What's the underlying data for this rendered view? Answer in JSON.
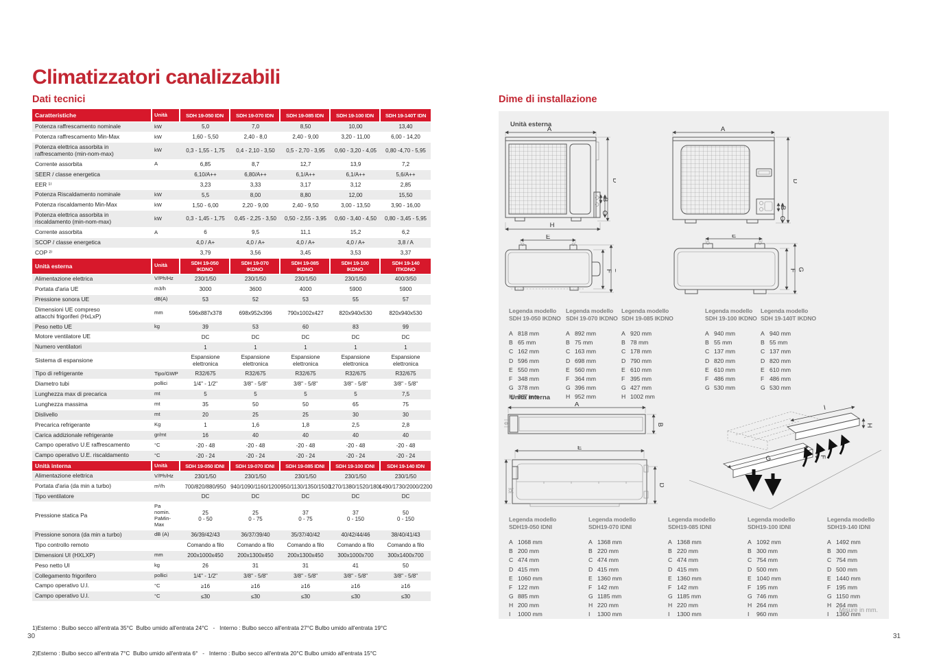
{
  "colors": {
    "accent": "#d7182b",
    "title": "#c22632",
    "panel": "#efefef",
    "row_alt": "#ebebeb"
  },
  "page": {
    "title": "Climatizzatori canalizzabili",
    "left_number": "30",
    "right_number": "31"
  },
  "left": {
    "section_title": "Dati tecnici",
    "table": {
      "header": {
        "label": "Caratteristiche",
        "unit": "Unità",
        "models": [
          "SDH 19-050 IDN",
          "SDH 19-070 IDN",
          "SDH 19-085 IDN",
          "SDH 19-100 IDN",
          "SDH 19-140T IDN"
        ]
      },
      "rows": [
        {
          "label": "Potenza raffrescamento nominale",
          "unit": "kW",
          "values": [
            "5,0",
            "7,0",
            "8,50",
            "10,00",
            "13,40"
          ]
        },
        {
          "label": "Potenza raffrescamento Min-Max",
          "unit": "kW",
          "values": [
            "1,60 - 5,50",
            "2,40 - 8,0",
            "2,40 - 9,00",
            "3,20 - 11,00",
            "6,00 - 14,20"
          ]
        },
        {
          "label": "Potenza elettrica assorbita in\nraffrescamento (min-nom-max)",
          "unit": "kW",
          "values": [
            "0,3 - 1,55 - 1,75",
            "0,4 - 2,10 - 3,50",
            "0,5 - 2,70 - 3,95",
            "0,60 - 3,20 - 4,05",
            "0,80 -4,70 - 5,95"
          ]
        },
        {
          "label": "Corrente assorbita",
          "unit": "A",
          "values": [
            "6,85",
            "8,7",
            "12,7",
            "13,9",
            "7,2"
          ]
        },
        {
          "label": "SEER / classe energetica",
          "unit": "",
          "values": [
            "6,10/A++",
            "6,80/A++",
            "6,1/A++",
            "6,1/A++",
            "5,6/A++"
          ]
        },
        {
          "label": "EER ¹⁾",
          "unit": "",
          "values": [
            "3,23",
            "3,33",
            "3,17",
            "3,12",
            "2,85"
          ]
        },
        {
          "label": "Potenza Riscaldamento nominale",
          "unit": "kW",
          "values": [
            "5,5",
            "8,00",
            "8,80",
            "12,00",
            "15,50"
          ]
        },
        {
          "label": "Potenza riscaldamento Min-Max",
          "unit": "kW",
          "values": [
            "1,50 - 6,00",
            "2,20 - 9,00",
            "2,40 - 9,50",
            "3,00 - 13,50",
            "3,90 - 16,00"
          ]
        },
        {
          "label": "Potenza elettrica assorbita in\nriscaldamento (min-nom-max)",
          "unit": "kW",
          "values": [
            "0,3 - 1,45 - 1,75",
            "0,45 - 2,25 - 3,50",
            "0,50 - 2,55 - 3,95",
            "0,60 - 3,40 - 4,50",
            "0,80 - 3,45 - 5,95"
          ]
        },
        {
          "label": "Corrente assorbita",
          "unit": "A",
          "values": [
            "6",
            "9,5",
            "11,1",
            "15,2",
            "6,2"
          ]
        },
        {
          "label": "SCOP / classe energetica",
          "unit": "",
          "values": [
            "4,0 / A+",
            "4,0 / A+",
            "4,0 / A+",
            "4,0 / A+",
            "3,8 / A"
          ]
        },
        {
          "label": "COP ²⁾",
          "unit": "",
          "values": [
            "3,79",
            "3,56",
            "3,45",
            "3,53",
            "3,37"
          ]
        },
        {
          "type": "section",
          "label": "Unità esterna",
          "unit": "Unità",
          "values": [
            "SDH 19-050 IKDNO",
            "SDH 19-070 IKDNO",
            "SDH 19-085 IKDNO",
            "SDH 19-100 IKDNO",
            "SDH 19-140 ITKDNO"
          ]
        },
        {
          "label": "Alimentazione elettrica",
          "unit": "V/Ph/Hz",
          "values": [
            "230/1/50",
            "230/1/50",
            "230/1/50",
            "230/1/50",
            "400/3/50"
          ]
        },
        {
          "label": "Portata d'aria UE",
          "unit": "m3/h",
          "values": [
            "3000",
            "3600",
            "4000",
            "5900",
            "5900"
          ]
        },
        {
          "label": "Pressione sonora UE",
          "unit": "dB(A)",
          "values": [
            "53",
            "52",
            "53",
            "55",
            "57"
          ]
        },
        {
          "label": "Dimensioni UE compreso\nattacchi frigoriferi (HxLxP)",
          "unit": "mm",
          "values": [
            "596x887x378",
            "698x952x396",
            "790x1002x427",
            "820x940x530",
            "820x940x530"
          ]
        },
        {
          "label": "Peso netto UE",
          "unit": "kg",
          "values": [
            "39",
            "53",
            "60",
            "83",
            "99"
          ]
        },
        {
          "label": "Motore ventilatore UE",
          "unit": "",
          "values": [
            "DC",
            "DC",
            "DC",
            "DC",
            "DC"
          ]
        },
        {
          "label": "Numero ventilatori",
          "unit": "",
          "values": [
            "1",
            "1",
            "1",
            "1",
            "1"
          ]
        },
        {
          "label": "Sistema di espansione",
          "unit": "",
          "values": [
            "Espansione\nelettronica",
            "Espansione\nelettronica",
            "Espansione\nelettronica",
            "Espansione\nelettronica",
            "Espansione\nelettronica"
          ]
        },
        {
          "label": "Tipo di refrigerante",
          "unit": "Tipo/GWP",
          "values": [
            "R32/675",
            "R32/675",
            "R32/675",
            "R32/675",
            "R32/675"
          ]
        },
        {
          "label": "Diametro tubi",
          "unit": "pollici",
          "values": [
            "1/4\" - 1/2\"",
            "3/8\" - 5/8\"",
            "3/8\" - 5/8\"",
            "3/8\" - 5/8\"",
            "3/8\" - 5/8\""
          ]
        },
        {
          "label": "Lunghezza max di precarica",
          "unit": "mt",
          "values": [
            "5",
            "5",
            "5",
            "5",
            "7,5"
          ]
        },
        {
          "label": "Lunghezza massima",
          "unit": "mt",
          "values": [
            "35",
            "50",
            "50",
            "65",
            "75"
          ]
        },
        {
          "label": "Dislivello",
          "unit": "mt",
          "values": [
            "20",
            "25",
            "25",
            "30",
            "30"
          ]
        },
        {
          "label": "Precarica refrigerante",
          "unit": "Kg",
          "values": [
            "1",
            "1,6",
            "1,8",
            "2,5",
            "2,8"
          ]
        },
        {
          "label": "Carica addizionale refrigerante",
          "unit": "gr/mt",
          "values": [
            "16",
            "40",
            "40",
            "40",
            "40"
          ]
        },
        {
          "label": "Campo operativo U.E raffrescamento",
          "unit": "°C",
          "values": [
            "-20 - 48",
            "-20 - 48",
            "-20 - 48",
            "-20 - 48",
            "-20 - 48"
          ]
        },
        {
          "label": "Campo operativo U.E. riscaldamento",
          "unit": "°C",
          "values": [
            "-20 - 24",
            "-20 - 24",
            "-20 - 24",
            "-20 - 24",
            "-20 - 24"
          ]
        },
        {
          "type": "section",
          "label": "Unità interna",
          "unit": "Unità",
          "values": [
            "SDH 19-050 IDNI",
            "SDH 19-070 IDNI",
            "SDH 19-085 IDNI",
            "SDH 19-100 IDNI",
            "SDH 19-140 IDN"
          ]
        },
        {
          "label": "Alimentazione elettrica",
          "unit": "V/Ph/Hz",
          "values": [
            "230/1/50",
            "230/1/50",
            "230/1/50",
            "230/1/50",
            "230/1/50"
          ]
        },
        {
          "label": "Portata d'aria (da min a turbo)",
          "unit": "m³/h",
          "values": [
            "700/820/880/950",
            "940/1090/1160/1200",
            "950/1130/1350/1500",
            "1270/1380/1520/1800",
            "1490/1730/2000/2200"
          ]
        },
        {
          "label": "Tipo ventilatore",
          "unit": "",
          "values": [
            "DC",
            "DC",
            "DC",
            "DC",
            "DC"
          ]
        },
        {
          "label": "Pressione statica Pa",
          "unit": "Pa nomin.\nPaMin-Max",
          "values": [
            "25\n0 - 50",
            "25\n0 - 75",
            "37\n0 - 75",
            "37\n0 - 150",
            "50\n0 - 150"
          ]
        },
        {
          "label": "Pressione sonora (da min a turbo)",
          "unit": "dB (A)",
          "values": [
            "36/39/42/43",
            "36/37/39/40",
            "35/37/40/42",
            "40/42/44/46",
            "38/40/41/43"
          ]
        },
        {
          "label": "Tipo controllo remoto",
          "unit": "",
          "values": [
            "Comando a filo",
            "Comando a filo",
            "Comando a filo",
            "Comando a filo",
            "Comando a filo"
          ]
        },
        {
          "label": "Dimensioni UI (HXLXP)",
          "unit": "mm",
          "values": [
            "200x1000x450",
            "200x1300x450",
            "200x1300x450",
            "300x1000x700",
            "300x1400x700"
          ]
        },
        {
          "label": "Peso netto UI",
          "unit": "kg",
          "values": [
            "26",
            "31",
            "31",
            "41",
            "50"
          ]
        },
        {
          "label": "Collegamento frigorifero",
          "unit": "pollici",
          "values": [
            "1/4\" - 1/2\"",
            "3/8\" - 5/8\"",
            "3/8\" - 5/8\"",
            "3/8\" - 5/8\"",
            "3/8\" - 5/8\""
          ]
        },
        {
          "label": "Campo operativo U.I.",
          "unit": "°C",
          "values": [
            "≥16",
            "≥16",
            "≥16",
            "≥16",
            "≥16"
          ]
        },
        {
          "label": "Campo operativo U.I.",
          "unit": "°C",
          "values": [
            "≤30",
            "≤30",
            "≤30",
            "≤30",
            "≤30"
          ]
        }
      ]
    },
    "footnotes": [
      "1)Esterno : Bulbo secco all'entrata 35°C  Bulbo umido all'entrata 24°C   -   Interno : Bulbo secco all'entrata 27°C Bulbo umido all'entrata 19°C",
      "2)Esterno : Bulbo secco all'entrata 7°C  Bulbo umido all'entrata 6°   -   Interno : Bulbo secco all'entrata 20°C Bulbo umido all'entrata 15°C"
    ]
  },
  "right": {
    "section_title": "Dime di installazione",
    "outdoor_label": "Unità esterna",
    "indoor_label": "Unità interna",
    "measure_note": "Misure in mm.",
    "diagrams": {
      "outdoor_front_left": [
        "A",
        "D",
        "B",
        "C",
        "H"
      ],
      "outdoor_front_right": [
        "A",
        "D",
        "B",
        "C"
      ],
      "outdoor_side_left": [
        "E",
        "F",
        "G"
      ],
      "outdoor_side_right": [
        "E",
        "F",
        "G"
      ],
      "indoor_front": [
        "A",
        "B"
      ],
      "indoor_bottom": [
        "E",
        "C",
        "D"
      ],
      "indoor_iso": [
        "I",
        "H",
        "G",
        "F"
      ]
    },
    "outdoor_legends": [
      {
        "title": "Legenda modello",
        "model": "SDH 19-050 IKDNO",
        "entries": [
          [
            "A",
            "818 mm"
          ],
          [
            "B",
            "65 mm"
          ],
          [
            "C",
            "162 mm"
          ],
          [
            "D",
            "596 mm"
          ],
          [
            "E",
            "550 mm"
          ],
          [
            "F",
            "348 mm"
          ],
          [
            "G",
            "378 mm"
          ],
          [
            "H",
            "887 mm"
          ]
        ]
      },
      {
        "title": "Legenda modello",
        "model": "SDH 19-070 IKDNO",
        "entries": [
          [
            "A",
            "892 mm"
          ],
          [
            "B",
            "75 mm"
          ],
          [
            "C",
            "163 mm"
          ],
          [
            "D",
            "698 mm"
          ],
          [
            "E",
            "560 mm"
          ],
          [
            "F",
            "364 mm"
          ],
          [
            "G",
            "396 mm"
          ],
          [
            "H",
            "952 mm"
          ]
        ]
      },
      {
        "title": "Legenda modello",
        "model": "SDH 19-085 IKDNO",
        "entries": [
          [
            "A",
            "920 mm"
          ],
          [
            "B",
            "78 mm"
          ],
          [
            "C",
            "178 mm"
          ],
          [
            "D",
            "790 mm"
          ],
          [
            "E",
            "610 mm"
          ],
          [
            "F",
            "395 mm"
          ],
          [
            "G",
            "427 mm"
          ],
          [
            "H",
            "1002 mm"
          ]
        ]
      },
      {
        "title": "Legenda modello",
        "model": "SDH 19-100 IKDNO",
        "entries": [
          [
            "A",
            "940 mm"
          ],
          [
            "B",
            "55 mm"
          ],
          [
            "C",
            "137 mm"
          ],
          [
            "D",
            "820 mm"
          ],
          [
            "E",
            "610 mm"
          ],
          [
            "F",
            "486 mm"
          ],
          [
            "G",
            "530 mm"
          ]
        ]
      },
      {
        "title": "Legenda modello",
        "model": "SDH 19-140T IKDNO",
        "entries": [
          [
            "A",
            "940 mm"
          ],
          [
            "B",
            "55 mm"
          ],
          [
            "C",
            "137 mm"
          ],
          [
            "D",
            "820 mm"
          ],
          [
            "E",
            "610 mm"
          ],
          [
            "F",
            "486 mm"
          ],
          [
            "G",
            "530 mm"
          ]
        ]
      }
    ],
    "indoor_legends": [
      {
        "title": "Legenda modello",
        "model": "SDH19-050 IDNI",
        "entries": [
          [
            "A",
            "1068 mm"
          ],
          [
            "B",
            "200 mm"
          ],
          [
            "C",
            "474 mm"
          ],
          [
            "D",
            "415 mm"
          ],
          [
            "E",
            "1060 mm"
          ],
          [
            "F",
            "122 mm"
          ],
          [
            "G",
            "885 mm"
          ],
          [
            "H",
            "200 mm"
          ],
          [
            "I",
            "1000 mm"
          ]
        ]
      },
      {
        "title": "Legenda modello",
        "model": "SDH19-070 IDNI",
        "entries": [
          [
            "A",
            "1368 mm"
          ],
          [
            "B",
            "220 mm"
          ],
          [
            "C",
            "474 mm"
          ],
          [
            "D",
            "415 mm"
          ],
          [
            "E",
            "1360 mm"
          ],
          [
            "F",
            "142 mm"
          ],
          [
            "G",
            "1185 mm"
          ],
          [
            "H",
            "220 mm"
          ],
          [
            "I",
            "1300 mm"
          ]
        ]
      },
      {
        "title": "Legenda modello",
        "model": "SDH19-085 IDNI",
        "entries": [
          [
            "A",
            "1368 mm"
          ],
          [
            "B",
            "220 mm"
          ],
          [
            "C",
            "474 mm"
          ],
          [
            "D",
            "415 mm"
          ],
          [
            "E",
            "1360 mm"
          ],
          [
            "F",
            "142 mm"
          ],
          [
            "G",
            "1185 mm"
          ],
          [
            "H",
            "220 mm"
          ],
          [
            "I",
            "1300 mm"
          ]
        ]
      },
      {
        "title": "Legenda modello",
        "model": "SDH19-100 IDNI",
        "entries": [
          [
            "A",
            "1092 mm"
          ],
          [
            "B",
            "300 mm"
          ],
          [
            "C",
            "754 mm"
          ],
          [
            "D",
            "500 mm"
          ],
          [
            "E",
            "1040 mm"
          ],
          [
            "F",
            "195 mm"
          ],
          [
            "G",
            "746 mm"
          ],
          [
            "H",
            "264 mm"
          ],
          [
            "I",
            "960 mm"
          ]
        ]
      },
      {
        "title": "Legenda modello",
        "model": "SDH19-140 IDNI",
        "entries": [
          [
            "A",
            "1492 mm"
          ],
          [
            "B",
            "300 mm"
          ],
          [
            "C",
            "754 mm"
          ],
          [
            "D",
            "500 mm"
          ],
          [
            "E",
            "1440 mm"
          ],
          [
            "F",
            "195 mm"
          ],
          [
            "G",
            "1150 mm"
          ],
          [
            "H",
            "264 mm"
          ],
          [
            "I",
            "1360 mm"
          ]
        ]
      }
    ]
  }
}
